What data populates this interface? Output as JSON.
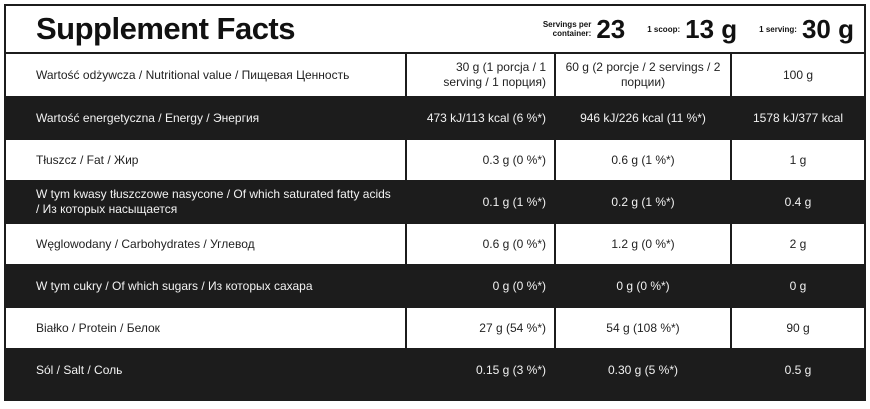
{
  "header": {
    "title": "Supplement Facts",
    "servings_label": "Servings per container:",
    "servings_value": "23",
    "scoop_label": "1 scoop:",
    "scoop_value": "13 g",
    "serving_label": "1 serving:",
    "serving_value": "30 g"
  },
  "table": {
    "columns": [
      "Wartość odżywcza / Nutritional value / Пищевая Ценность",
      "30 g (1 porcja / 1 serving / 1 порция)",
      "60 g (2 porcje / 2 servings / 2 порции)",
      "100 g"
    ],
    "rows": [
      [
        "Wartość energetyczna / Energy / Энергия",
        "473 kJ/113 kcal (6 %*)",
        "946 kJ/226 kcal (11 %*)",
        "1578 kJ/377 kcal"
      ],
      [
        "Tłuszcz / Fat / Жир",
        "0.3 g (0 %*)",
        "0.6 g (1 %*)",
        "1 g"
      ],
      [
        "W tym kwasy tłuszczowe nasycone / Of which saturated fatty acids / Из которых насыщается",
        "0.1 g (1 %*)",
        "0.2 g (1 %*)",
        "0.4 g"
      ],
      [
        "Węglowodany / Carbohydrates / Углевод",
        "0.6 g (0 %*)",
        "1.2 g (0 %*)",
        "2 g"
      ],
      [
        "W tym cukry / Of which sugars / Из которых сахара",
        "0 g (0 %*)",
        "0 g (0 %*)",
        "0 g"
      ],
      [
        "Białko / Protein / Белок",
        "27 g (54 %*)",
        "54 g (108 %*)",
        "90 g"
      ],
      [
        "Sól / Salt / Соль",
        "0.15 g (3 %*)",
        "0.30 g (5 %*)",
        "0.5 g"
      ]
    ]
  }
}
